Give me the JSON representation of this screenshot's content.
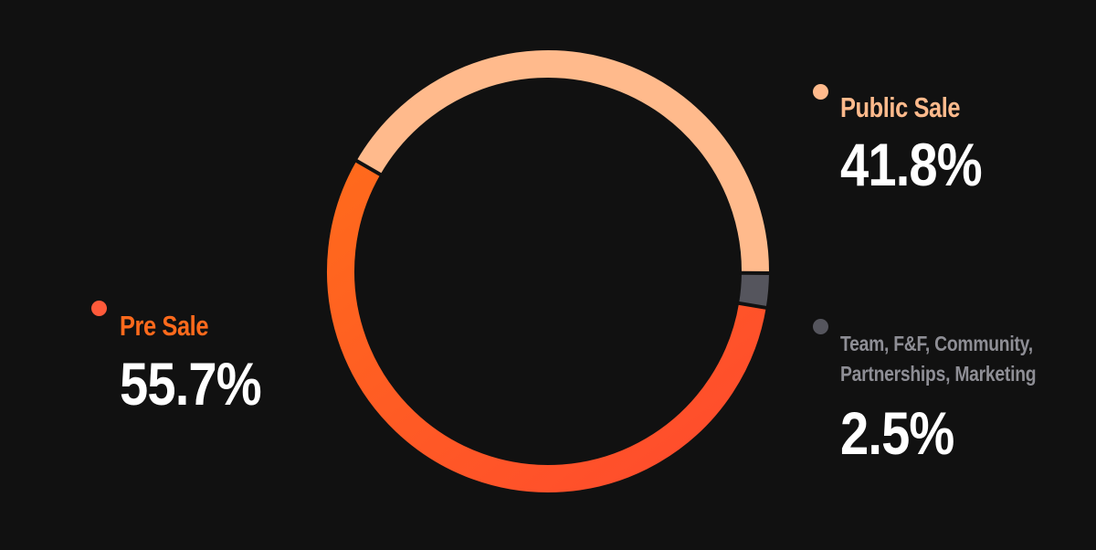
{
  "chart_data": {
    "type": "pie",
    "title": "",
    "labels": [
      "Public Sale",
      "Team, F&F, Community, Partnerships, Marketing",
      "Pre Sale"
    ],
    "values": [
      41.8,
      2.5,
      55.7
    ],
    "colors": [
      "#FFBA8C",
      "#55555D",
      "#FF6A1C"
    ],
    "pre_sale_gradient_end": "#FF4A2E",
    "separator_color": "#111111",
    "donut": true,
    "legend": {
      "public_sale": {
        "label": "Public Sale",
        "value_text": "41.8%",
        "color": "#FFBA8C"
      },
      "team": {
        "label_line1": "Team, F&F, Community,",
        "label_line2": "Partnerships, Marketing",
        "value_text": "2.5%",
        "color": "#55555D",
        "label_color": "#8E8E95"
      },
      "pre_sale": {
        "label": "Pre Sale",
        "value_text": "55.7%",
        "color": "#FF6A1C",
        "dot_color": "#FF5A3A"
      }
    }
  }
}
